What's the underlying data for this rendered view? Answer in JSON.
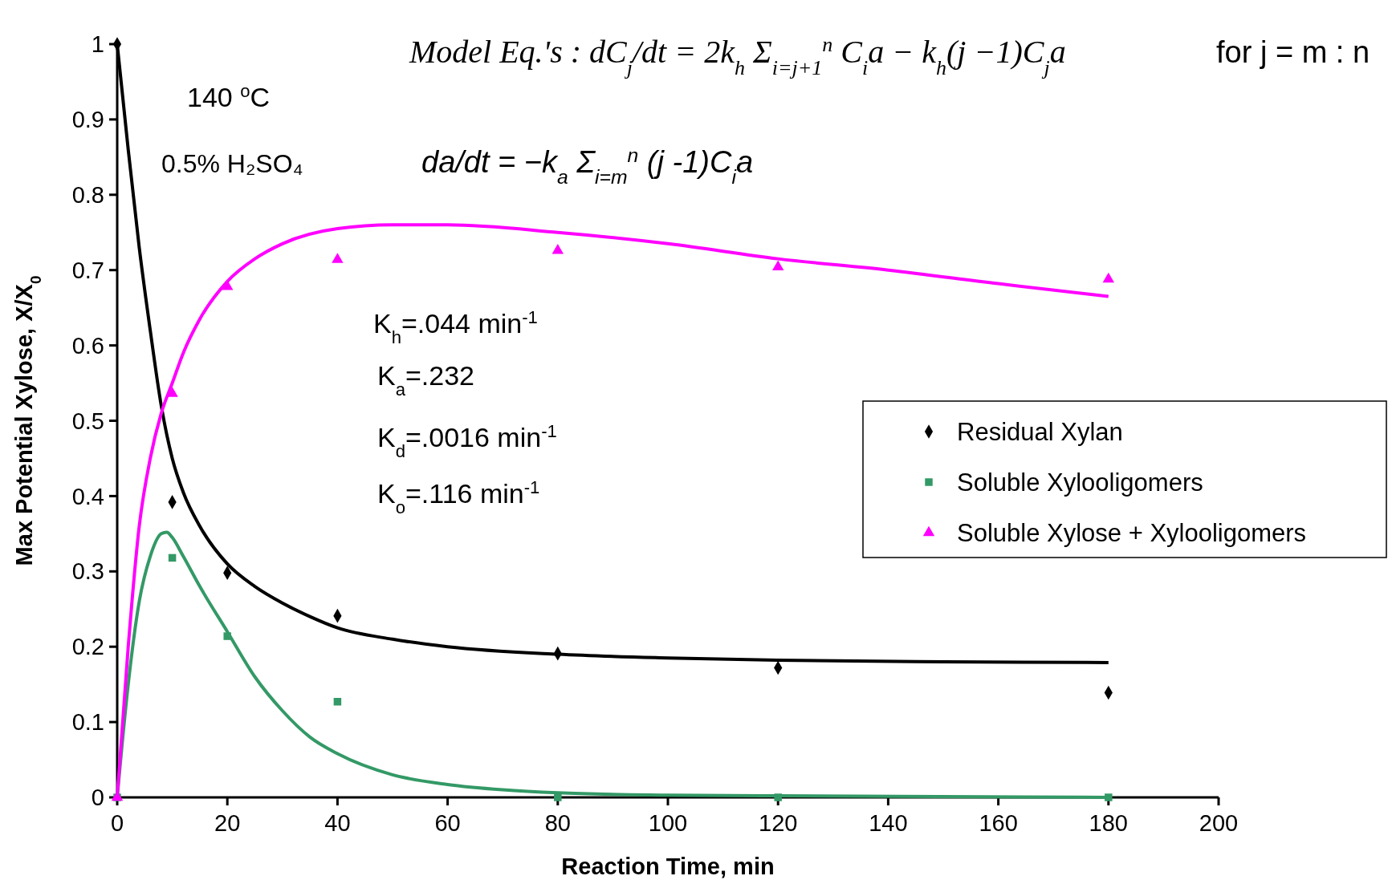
{
  "chart_data": {
    "type": "scatter",
    "xlabel": "Reaction Time, min",
    "ylabel": "Max Potential Xylose, X/X$_{0}$",
    "xlim": [
      0,
      200
    ],
    "xticks": [
      0,
      20,
      40,
      60,
      80,
      100,
      120,
      140,
      160,
      180,
      200
    ],
    "ylim": [
      0,
      1
    ],
    "yticks": [
      0,
      0.1,
      0.2,
      0.3,
      0.4,
      0.5,
      0.6,
      0.7,
      0.8,
      0.9,
      1
    ],
    "grid": false,
    "legend": "right",
    "annotations": [
      "Model Eq.'s : dC$_{j}$/dt = 2k$_{h}$ Σ$_{i=j+1}$$^{n}$ C$_{i}$a − k$_{h}$(j −1)C$_{j}$a",
      "for j = m : n",
      "da/dt = −k$_{a}$ Σ$_{i=m}$$^{n}$ (j -1)C$_{i}$a",
      "140 $^{o}$C",
      "0.5% H₂SO₄",
      "K$_{h}$=.044 min$^{-1}$",
      "K$_{a}$=.232",
      "K$_{d}$=.0016 min$^{-1}$",
      "K$_{o}$=.116 min$^{-1}$"
    ],
    "series": [
      {
        "type": "line",
        "color": "#000000",
        "line_style": "solid",
        "x": [
          0,
          2,
          4,
          6,
          8,
          10,
          12,
          15,
          20,
          25,
          30,
          35,
          40,
          50,
          60,
          80,
          100,
          120,
          150,
          180
        ],
        "values": [
          1,
          0.86,
          0.73,
          0.62,
          0.52,
          0.45,
          0.405,
          0.36,
          0.31,
          0.28,
          0.258,
          0.24,
          0.225,
          0.21,
          0.2,
          0.19,
          0.185,
          0.182,
          0.18,
          0.179
        ]
      },
      {
        "type": "line",
        "color": "#339966",
        "line_style": "solid",
        "x": [
          0,
          2,
          4,
          6,
          8,
          9,
          10,
          12,
          15,
          20,
          25,
          30,
          35,
          40,
          50,
          60,
          70,
          80,
          100,
          120,
          180
        ],
        "values": [
          0,
          0.15,
          0.26,
          0.32,
          0.35,
          0.352,
          0.345,
          0.32,
          0.28,
          0.22,
          0.16,
          0.115,
          0.08,
          0.058,
          0.03,
          0.017,
          0.01,
          0.006,
          0.003,
          0.002,
          0
        ]
      },
      {
        "type": "line",
        "color": "#ff00ff",
        "line_style": "solid",
        "x": [
          0,
          2,
          4,
          6,
          8,
          10,
          12,
          15,
          20,
          25,
          30,
          40,
          50,
          60,
          80,
          100,
          120,
          140,
          160,
          180
        ],
        "values": [
          0,
          0.2,
          0.36,
          0.45,
          0.51,
          0.55,
          0.59,
          0.635,
          0.685,
          0.715,
          0.735,
          0.755,
          0.76,
          0.76,
          0.75,
          0.735,
          0.715,
          0.7,
          0.682,
          0.665
        ]
      },
      {
        "name": "Residual Xylan",
        "color": "#000000",
        "marker": "diamond",
        "x": [
          0,
          10,
          20,
          40,
          80,
          120,
          180
        ],
        "values": [
          1,
          0.392,
          0.298,
          0.241,
          0.191,
          0.172,
          0.139
        ]
      },
      {
        "name": "Soluble Xylooligomers",
        "color": "#339966",
        "marker": "square",
        "x": [
          0,
          10,
          20,
          40,
          80,
          120,
          180
        ],
        "values": [
          0,
          0.318,
          0.214,
          0.127,
          0,
          0,
          0
        ]
      },
      {
        "name": "Soluble Xylose + Xylooligomers",
        "color": "#ff00ff",
        "marker": "triangle",
        "x": [
          0,
          10,
          20,
          40,
          80,
          120,
          180
        ],
        "values": [
          0,
          0.536,
          0.678,
          0.714,
          0.726,
          0.704,
          0.688
        ]
      }
    ]
  }
}
